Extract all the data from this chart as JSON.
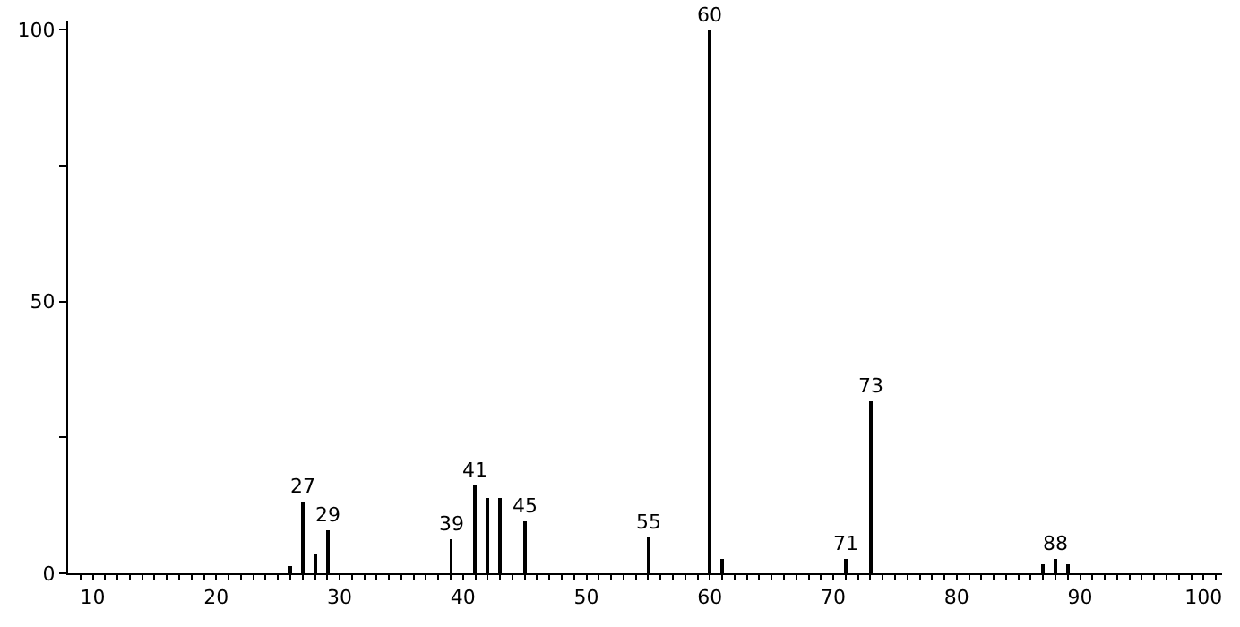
{
  "chart_data": {
    "type": "bar",
    "x": [
      26,
      27,
      28,
      29,
      39,
      41,
      42,
      43,
      45,
      55,
      60,
      61,
      71,
      73,
      87,
      88,
      89
    ],
    "values": [
      1.2,
      13.1,
      3.7,
      7.8,
      6.2,
      16.2,
      13.7,
      14.0,
      9.7,
      6.5,
      100,
      2.5,
      2.8,
      31.8,
      1.6,
      2.5,
      1.6
    ],
    "color": "#000000",
    "xlim": [
      8,
      101.5
    ],
    "ylim": [
      0,
      101.5
    ],
    "xticks": [
      {
        "value": 9,
        "label": null
      },
      10,
      {
        "value": 11,
        "label": null
      },
      {
        "value": 12,
        "label": null
      },
      {
        "value": 13,
        "label": null
      },
      {
        "value": 14,
        "label": null
      },
      {
        "value": 15,
        "label": null
      },
      {
        "value": 16,
        "label": null
      },
      {
        "value": 17,
        "label": null
      },
      {
        "value": 18,
        "label": null
      },
      {
        "value": 19,
        "label": null
      },
      20,
      {
        "value": 21,
        "label": null
      },
      {
        "value": 22,
        "label": null
      },
      {
        "value": 23,
        "label": null
      },
      {
        "value": 24,
        "label": null
      },
      {
        "value": 25,
        "label": null
      },
      {
        "value": 26,
        "label": null
      },
      {
        "value": 27,
        "label": null
      },
      {
        "value": 28,
        "label": null
      },
      {
        "value": 29,
        "label": null
      },
      30,
      {
        "value": 31,
        "label": null
      },
      {
        "value": 32,
        "label": null
      },
      {
        "value": 33,
        "label": null
      },
      {
        "value": 34,
        "label": null
      },
      {
        "value": 35,
        "label": null
      },
      {
        "value": 36,
        "label": null
      },
      {
        "value": 37,
        "label": null
      },
      {
        "value": 38,
        "label": null
      },
      {
        "value": 39,
        "label": null
      },
      40,
      {
        "value": 41,
        "label": null
      },
      {
        "value": 42,
        "label": null
      },
      {
        "value": 43,
        "label": null
      },
      {
        "value": 44,
        "label": null
      },
      {
        "value": 45,
        "label": null
      },
      {
        "value": 46,
        "label": null
      },
      {
        "value": 47,
        "label": null
      },
      {
        "value": 48,
        "label": null
      },
      {
        "value": 49,
        "label": null
      },
      50,
      {
        "value": 51,
        "label": null
      },
      {
        "value": 52,
        "label": null
      },
      {
        "value": 53,
        "label": null
      },
      {
        "value": 54,
        "label": null
      },
      {
        "value": 55,
        "label": null
      },
      {
        "value": 56,
        "label": null
      },
      {
        "value": 57,
        "label": null
      },
      {
        "value": 58,
        "label": null
      },
      {
        "value": 59,
        "label": null
      },
      60,
      {
        "value": 61,
        "label": null
      },
      {
        "value": 62,
        "label": null
      },
      {
        "value": 63,
        "label": null
      },
      {
        "value": 64,
        "label": null
      },
      {
        "value": 65,
        "label": null
      },
      {
        "value": 66,
        "label": null
      },
      {
        "value": 67,
        "label": null
      },
      {
        "value": 68,
        "label": null
      },
      {
        "value": 69,
        "label": null
      },
      70,
      {
        "value": 71,
        "label": null
      },
      {
        "value": 72,
        "label": null
      },
      {
        "value": 73,
        "label": null
      },
      {
        "value": 74,
        "label": null
      },
      {
        "value": 75,
        "label": null
      },
      {
        "value": 76,
        "label": null
      },
      {
        "value": 77,
        "label": null
      },
      {
        "value": 78,
        "label": null
      },
      {
        "value": 79,
        "label": null
      },
      80,
      {
        "value": 81,
        "label": null
      },
      {
        "value": 82,
        "label": null
      },
      {
        "value": 83,
        "label": null
      },
      {
        "value": 84,
        "label": null
      },
      {
        "value": 85,
        "label": null
      },
      {
        "value": 86,
        "label": null
      },
      {
        "value": 87,
        "label": null
      },
      {
        "value": 88,
        "label": null
      },
      {
        "value": 89,
        "label": null
      },
      90,
      {
        "value": 91,
        "label": null
      },
      {
        "value": 92,
        "label": null
      },
      {
        "value": 93,
        "label": null
      },
      {
        "value": 94,
        "label": null
      },
      {
        "value": 95,
        "label": null
      },
      {
        "value": 96,
        "label": null
      },
      {
        "value": 97,
        "label": null
      },
      {
        "value": 98,
        "label": null
      },
      {
        "value": 99,
        "label": null
      },
      100,
      {
        "value": 101,
        "label": null
      }
    ],
    "yticks": [
      0,
      {
        "value": 25,
        "label": null
      },
      50,
      {
        "value": 75,
        "label": null
      },
      100
    ],
    "annotations": [
      {
        "text": "27",
        "x": 27,
        "y": 13.1
      },
      {
        "text": "29",
        "x": 29,
        "y": 7.8
      },
      {
        "text": "39",
        "x": 39,
        "y": 6.2
      },
      {
        "text": "41",
        "x": 41,
        "y": 16.2
      },
      {
        "text": "45",
        "x": 45,
        "y": 9.7
      },
      {
        "text": "55",
        "x": 55,
        "y": 6.5
      },
      {
        "text": "60",
        "x": 60,
        "y": 100
      },
      {
        "text": "71",
        "x": 71,
        "y": 2.8
      },
      {
        "text": "73",
        "x": 73,
        "y": 31.8
      },
      {
        "text": "88",
        "x": 88,
        "y": 2.5
      }
    ]
  }
}
